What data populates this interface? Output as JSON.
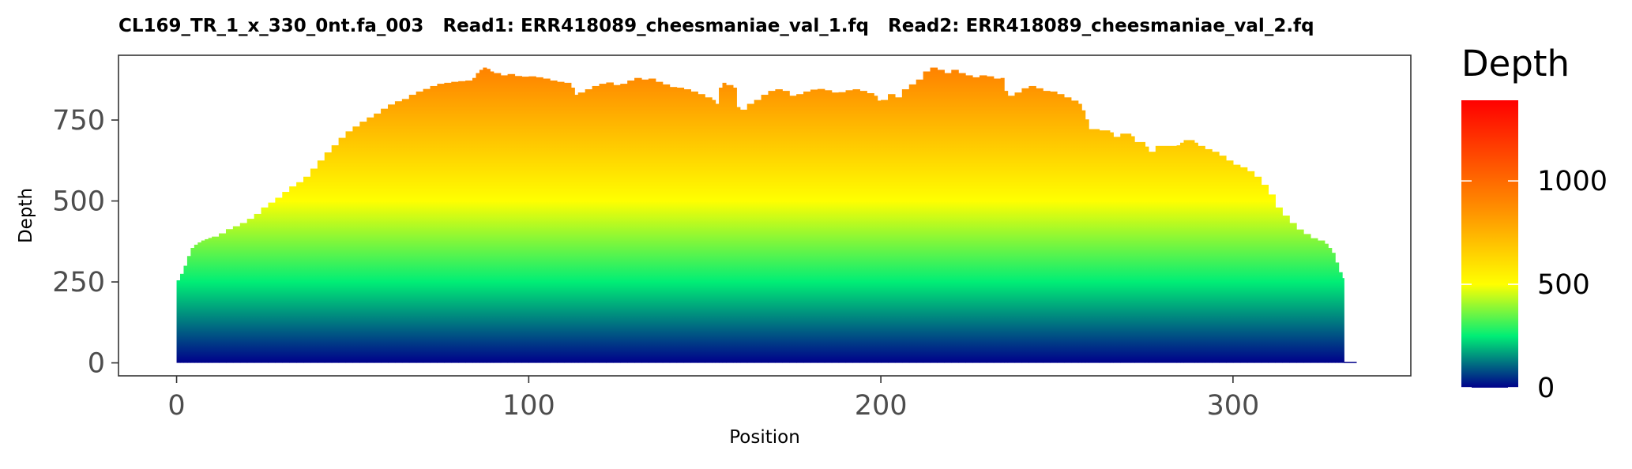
{
  "chart_data": {
    "type": "area",
    "title": "CL169_TR_1_x_330_0nt.fa_003   Read1: ERR418089_cheesmaniae_val_1.fq   Read2: ERR418089_cheesmaniae_val_2.fq",
    "xlabel": "Position",
    "ylabel": "Depth",
    "xlim": [
      -16.5,
      350.5
    ],
    "ylim": [
      -40,
      950
    ],
    "x_ticks": [
      0,
      100,
      200,
      300
    ],
    "y_ticks": [
      0,
      250,
      500,
      750
    ],
    "grid": false,
    "legend": {
      "title": "Depth",
      "position": "right",
      "range": [
        0,
        1390
      ],
      "ticks": [
        0,
        500,
        1000
      ],
      "colors": [
        "#00008b",
        "#00ee76",
        "#ffff00",
        "#ff8c00",
        "#ff0000"
      ],
      "color_stops": [
        0,
        250,
        500,
        875,
        1390
      ]
    },
    "points": [
      [
        0,
        255
      ],
      [
        1,
        275
      ],
      [
        2,
        300
      ],
      [
        3,
        330
      ],
      [
        4,
        355
      ],
      [
        5,
        365
      ],
      [
        6,
        372
      ],
      [
        7,
        378
      ],
      [
        8,
        382
      ],
      [
        9,
        386
      ],
      [
        10,
        390
      ],
      [
        12,
        400
      ],
      [
        14,
        413
      ],
      [
        16,
        422
      ],
      [
        18,
        432
      ],
      [
        20,
        445
      ],
      [
        22,
        460
      ],
      [
        24,
        480
      ],
      [
        26,
        495
      ],
      [
        28,
        510
      ],
      [
        30,
        528
      ],
      [
        32,
        545
      ],
      [
        34,
        558
      ],
      [
        36,
        575
      ],
      [
        38,
        600
      ],
      [
        40,
        625
      ],
      [
        42,
        650
      ],
      [
        44,
        672
      ],
      [
        46,
        695
      ],
      [
        48,
        715
      ],
      [
        50,
        730
      ],
      [
        52,
        745
      ],
      [
        54,
        758
      ],
      [
        56,
        770
      ],
      [
        58,
        785
      ],
      [
        60,
        798
      ],
      [
        62,
        808
      ],
      [
        64,
        815
      ],
      [
        66,
        828
      ],
      [
        68,
        838
      ],
      [
        70,
        846
      ],
      [
        72,
        855
      ],
      [
        74,
        862
      ],
      [
        76,
        865
      ],
      [
        78,
        868
      ],
      [
        80,
        870
      ],
      [
        82,
        872
      ],
      [
        84,
        880
      ],
      [
        85,
        895
      ],
      [
        86,
        905
      ],
      [
        87,
        912
      ],
      [
        88,
        908
      ],
      [
        89,
        900
      ],
      [
        90,
        895
      ],
      [
        92,
        888
      ],
      [
        94,
        892
      ],
      [
        96,
        886
      ],
      [
        98,
        884
      ],
      [
        100,
        885
      ],
      [
        102,
        882
      ],
      [
        104,
        878
      ],
      [
        106,
        872
      ],
      [
        108,
        868
      ],
      [
        110,
        865
      ],
      [
        112,
        850
      ],
      [
        113,
        828
      ],
      [
        114,
        835
      ],
      [
        116,
        845
      ],
      [
        118,
        855
      ],
      [
        120,
        862
      ],
      [
        122,
        866
      ],
      [
        124,
        858
      ],
      [
        126,
        862
      ],
      [
        128,
        872
      ],
      [
        130,
        880
      ],
      [
        132,
        875
      ],
      [
        134,
        878
      ],
      [
        136,
        868
      ],
      [
        138,
        860
      ],
      [
        140,
        852
      ],
      [
        142,
        850
      ],
      [
        144,
        845
      ],
      [
        146,
        838
      ],
      [
        148,
        830
      ],
      [
        150,
        820
      ],
      [
        152,
        812
      ],
      [
        153,
        800
      ],
      [
        154,
        850
      ],
      [
        155,
        865
      ],
      [
        156,
        858
      ],
      [
        158,
        850
      ],
      [
        159,
        790
      ],
      [
        160,
        782
      ],
      [
        162,
        800
      ],
      [
        164,
        812
      ],
      [
        166,
        828
      ],
      [
        168,
        840
      ],
      [
        170,
        845
      ],
      [
        172,
        840
      ],
      [
        174,
        825
      ],
      [
        176,
        830
      ],
      [
        178,
        838
      ],
      [
        180,
        844
      ],
      [
        182,
        846
      ],
      [
        184,
        842
      ],
      [
        186,
        835
      ],
      [
        188,
        836
      ],
      [
        190,
        842
      ],
      [
        192,
        845
      ],
      [
        194,
        840
      ],
      [
        196,
        833
      ],
      [
        198,
        825
      ],
      [
        199,
        810
      ],
      [
        200,
        812
      ],
      [
        202,
        830
      ],
      [
        204,
        820
      ],
      [
        206,
        845
      ],
      [
        208,
        860
      ],
      [
        210,
        875
      ],
      [
        212,
        900
      ],
      [
        214,
        912
      ],
      [
        216,
        905
      ],
      [
        218,
        895
      ],
      [
        220,
        905
      ],
      [
        222,
        895
      ],
      [
        224,
        888
      ],
      [
        226,
        882
      ],
      [
        228,
        888
      ],
      [
        230,
        885
      ],
      [
        232,
        878
      ],
      [
        234,
        880
      ],
      [
        235,
        840
      ],
      [
        236,
        825
      ],
      [
        238,
        835
      ],
      [
        240,
        848
      ],
      [
        242,
        855
      ],
      [
        244,
        848
      ],
      [
        246,
        840
      ],
      [
        248,
        838
      ],
      [
        250,
        830
      ],
      [
        252,
        820
      ],
      [
        254,
        810
      ],
      [
        256,
        800
      ],
      [
        257,
        780
      ],
      [
        258,
        752
      ],
      [
        259,
        722
      ],
      [
        262,
        718
      ],
      [
        265,
        712
      ],
      [
        266,
        698
      ],
      [
        268,
        708
      ],
      [
        271,
        700
      ],
      [
        272,
        682
      ],
      [
        275,
        668
      ],
      [
        276,
        652
      ],
      [
        278,
        670
      ],
      [
        284,
        672
      ],
      [
        285,
        680
      ],
      [
        286,
        688
      ],
      [
        289,
        680
      ],
      [
        290,
        670
      ],
      [
        292,
        660
      ],
      [
        294,
        652
      ],
      [
        296,
        640
      ],
      [
        298,
        625
      ],
      [
        300,
        612
      ],
      [
        302,
        604
      ],
      [
        304,
        592
      ],
      [
        306,
        575
      ],
      [
        308,
        550
      ],
      [
        310,
        520
      ],
      [
        312,
        480
      ],
      [
        314,
        455
      ],
      [
        316,
        432
      ],
      [
        318,
        412
      ],
      [
        320,
        398
      ],
      [
        322,
        385
      ],
      [
        324,
        378
      ],
      [
        326,
        368
      ],
      [
        327,
        355
      ],
      [
        328,
        340
      ],
      [
        329,
        310
      ],
      [
        330,
        280
      ],
      [
        331,
        262
      ],
      [
        331.5,
        3
      ],
      [
        335,
        3
      ]
    ]
  }
}
